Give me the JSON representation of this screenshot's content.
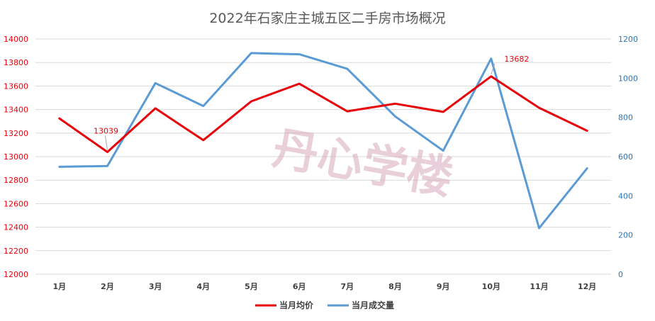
{
  "chart_data": {
    "type": "line",
    "title": "2022年石家庄主城五区二手房市场概况",
    "categories": [
      "1月",
      "2月",
      "3月",
      "4月",
      "5月",
      "6月",
      "7月",
      "8月",
      "9月",
      "10月",
      "11月",
      "12月"
    ],
    "y_left": {
      "ticks": [
        "12000",
        "12200",
        "12400",
        "12600",
        "12800",
        "13000",
        "13200",
        "13400",
        "13600",
        "13800",
        "14000"
      ],
      "ylim": [
        12000,
        14000
      ]
    },
    "y_right": {
      "ticks": [
        "0",
        "200",
        "400",
        "600",
        "800",
        "1000",
        "1200"
      ],
      "ylim": [
        0,
        1200
      ]
    },
    "grid": true,
    "legend_position": "bottom",
    "series": [
      {
        "name": "当月均价",
        "axis": "left",
        "color": "#e8000b",
        "values": [
          13325,
          13039,
          13410,
          13140,
          13470,
          13620,
          13385,
          13450,
          13380,
          13682,
          13415,
          13220
        ]
      },
      {
        "name": "当月成交量",
        "axis": "right",
        "color": "#5b9bd5",
        "values": [
          548,
          552,
          975,
          858,
          1128,
          1122,
          1048,
          805,
          630,
          1100,
          235,
          540
        ]
      }
    ],
    "annotations": [
      {
        "series": 0,
        "index": 1,
        "text": "13039"
      },
      {
        "series": 0,
        "index": 9,
        "text": "13682"
      }
    ]
  },
  "watermark": "丹心学楼"
}
